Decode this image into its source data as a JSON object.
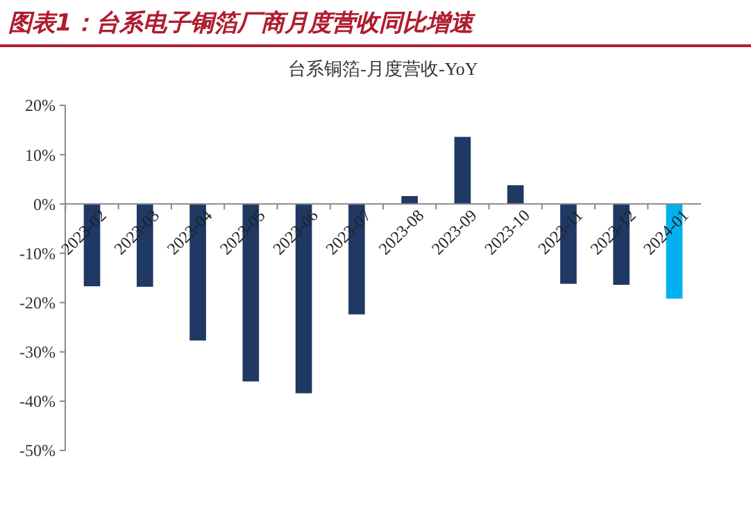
{
  "chart_data": {
    "type": "bar",
    "title": "图表1：台系电子铜箔厂商月度营收同比增速",
    "subtitle": "台系铜箔-月度营收-YoY",
    "categories": [
      "2023-02",
      "2023-03",
      "2023-04",
      "2023-05",
      "2023-06",
      "2023-07",
      "2023-08",
      "2023-09",
      "2023-10",
      "2023-11",
      "2023-12",
      "2024-01"
    ],
    "values": [
      -16.7,
      -16.8,
      -27.7,
      -36.0,
      -38.4,
      -22.4,
      1.6,
      13.6,
      3.8,
      -16.2,
      -16.4,
      -19.2
    ],
    "colors": [
      "#1f3864",
      "#1f3864",
      "#1f3864",
      "#1f3864",
      "#1f3864",
      "#1f3864",
      "#1f3864",
      "#1f3864",
      "#1f3864",
      "#1f3864",
      "#1f3864",
      "#00b0f0"
    ],
    "ylim": [
      -50,
      20
    ],
    "yticks": [
      {
        "value": -50,
        "label": "-50%"
      },
      {
        "value": -40,
        "label": "-40%"
      },
      {
        "value": -30,
        "label": "-30%"
      },
      {
        "value": -20,
        "label": "-20%"
      },
      {
        "value": -10,
        "label": "-10%"
      },
      {
        "value": 0,
        "label": "0%"
      },
      {
        "value": 10,
        "label": "10%"
      },
      {
        "value": 20,
        "label": "20%"
      }
    ],
    "grid": false
  }
}
